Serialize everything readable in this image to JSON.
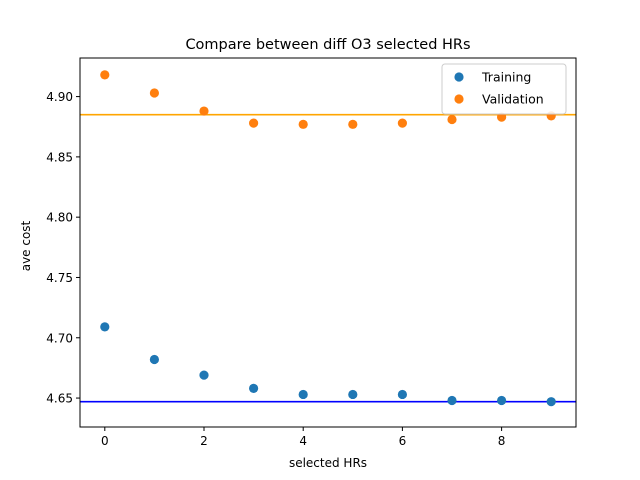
{
  "chart_data": {
    "type": "scatter",
    "title": "Compare between diff O3 selected HRs",
    "xlabel": "selected HRs",
    "ylabel": "ave cost",
    "xlim": [
      -0.5,
      9.5
    ],
    "ylim": [
      4.626,
      4.932
    ],
    "xticks": [
      0,
      2,
      4,
      6,
      8
    ],
    "yticks": [
      4.65,
      4.7,
      4.75,
      4.8,
      4.85,
      4.9
    ],
    "ytick_labels": [
      "4.65",
      "4.70",
      "4.75",
      "4.80",
      "4.85",
      "4.90"
    ],
    "grid": false,
    "legend_position": "top-right",
    "series": [
      {
        "name": "Training",
        "color": "#1f77b4",
        "x": [
          0,
          1,
          2,
          3,
          4,
          5,
          6,
          7,
          8,
          9
        ],
        "y": [
          4.709,
          4.682,
          4.669,
          4.658,
          4.653,
          4.653,
          4.653,
          4.648,
          4.648,
          4.647
        ]
      },
      {
        "name": "Validation",
        "color": "#ff7f0e",
        "x": [
          0,
          1,
          2,
          3,
          4,
          5,
          6,
          7,
          8,
          9
        ],
        "y": [
          4.918,
          4.903,
          4.888,
          4.878,
          4.877,
          4.877,
          4.878,
          4.881,
          4.883,
          4.884
        ]
      }
    ],
    "hlines": [
      {
        "y": 4.885,
        "color": "#ffa500"
      },
      {
        "y": 4.647,
        "color": "#0000ff"
      }
    ]
  }
}
